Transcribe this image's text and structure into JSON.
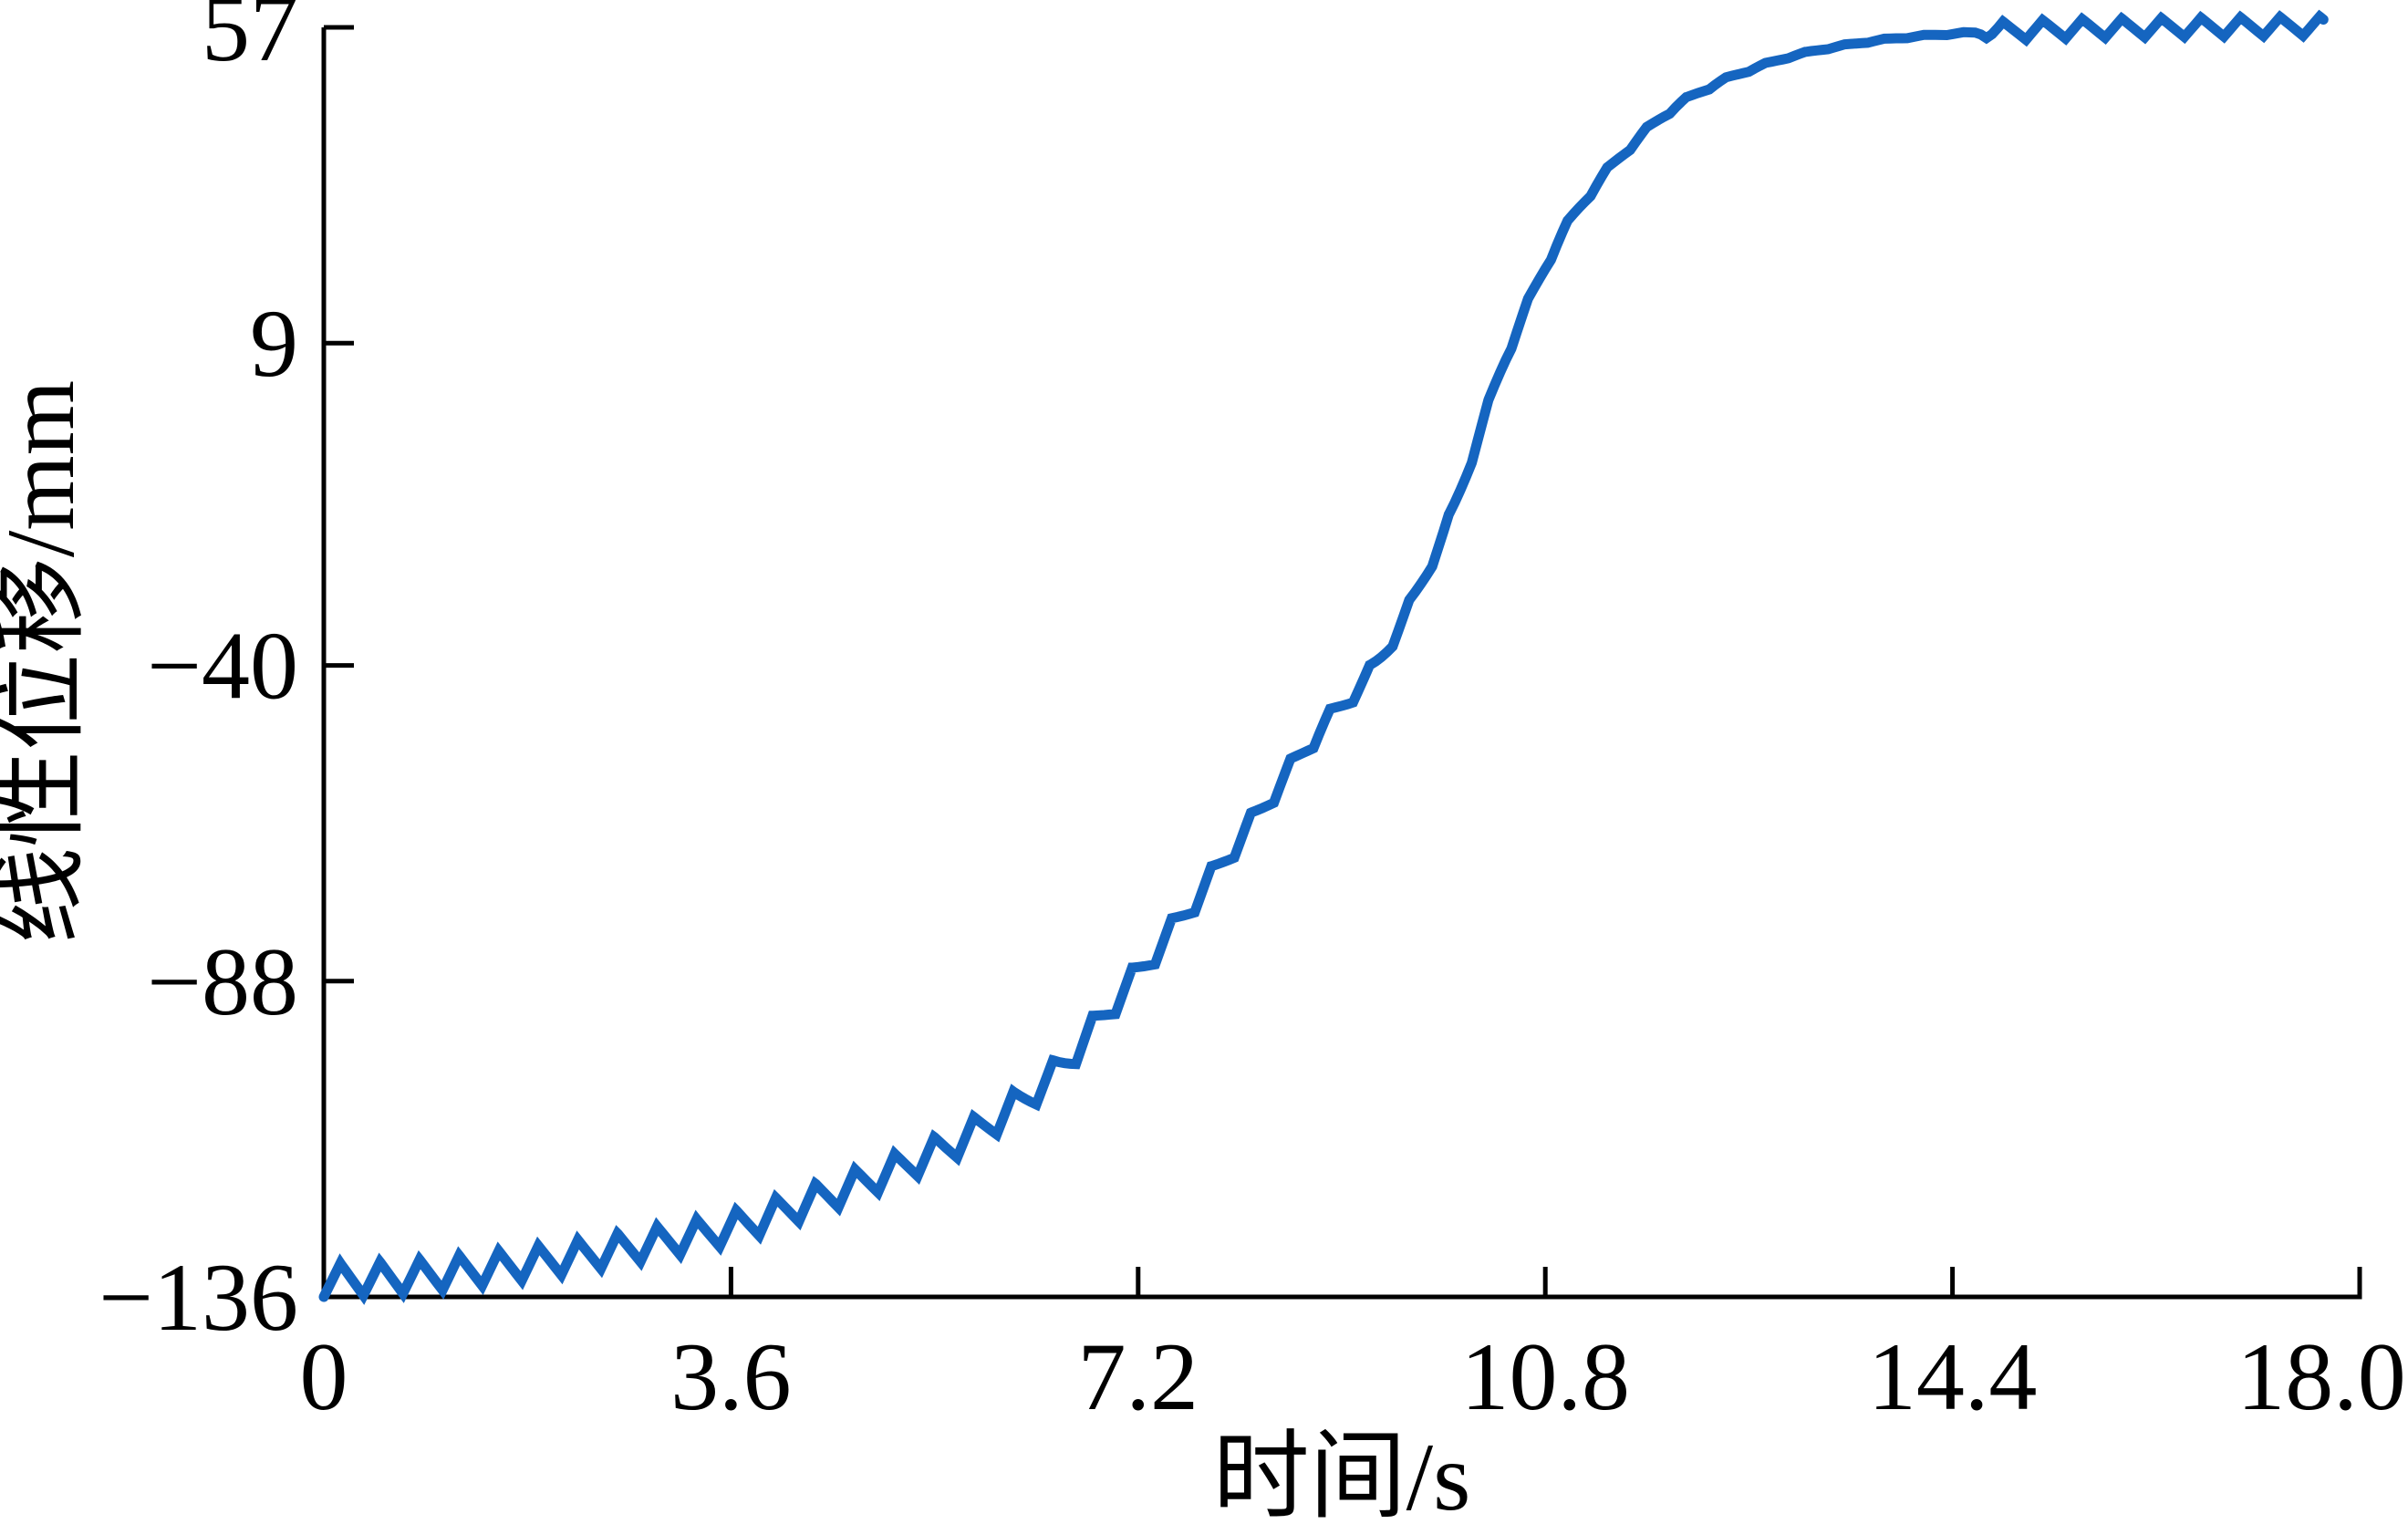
{
  "figure": {
    "background_color": "#ffffff",
    "title": ""
  },
  "axes": {
    "xlabel": "时间/s",
    "ylabel": "线性位移/mm",
    "axis_color": "#000000",
    "x_ticks": {
      "values": [
        0,
        3.6,
        7.2,
        10.8,
        14.4,
        18.0
      ],
      "labels": [
        "0",
        "3.6",
        "7.2",
        "10.8",
        "14.4",
        "18.0"
      ]
    },
    "y_ticks": {
      "values": [
        57,
        9,
        -40,
        -88,
        -136
      ],
      "labels": [
        "57",
        "9",
        "−40",
        "−88",
        "−136"
      ]
    }
  },
  "chart_data": {
    "type": "line",
    "title": "",
    "xlabel": "时间/s",
    "ylabel": "线性位移/mm",
    "xlim": [
      0,
      18
    ],
    "ylim": [
      -136,
      57
    ],
    "grid": false,
    "legend": null,
    "series": [
      {
        "name": "线性位移",
        "color": "#1565c0",
        "description": "S-shaped displacement response from -136 mm to 57 mm with a small sawtooth ripple superimposed; ripple visible at start, becomes staircase steps during the rise, nearly smooth near 13-14.5 s, then a steady zigzag on the 57 mm plateau.",
        "t_start": 0,
        "t_end": 17.68,
        "midline_points": [
          [
            0.0,
            -133.5
          ],
          [
            0.7,
            -133.0
          ],
          [
            1.4,
            -131.8
          ],
          [
            2.1,
            -130.2
          ],
          [
            2.8,
            -128.2
          ],
          [
            3.6,
            -125.5
          ],
          [
            4.3,
            -121.5
          ],
          [
            5.0,
            -117.0
          ],
          [
            5.7,
            -111.5
          ],
          [
            6.4,
            -103.0
          ],
          [
            7.0,
            -91.0
          ],
          [
            7.6,
            -78.0
          ],
          [
            8.2,
            -64.0
          ],
          [
            8.8,
            -50.0
          ],
          [
            9.3,
            -40.0
          ],
          [
            9.9,
            -20.0
          ],
          [
            10.5,
            9.0
          ],
          [
            11.0,
            27.0
          ],
          [
            11.5,
            38.0
          ],
          [
            12.0,
            45.5
          ],
          [
            12.6,
            50.5
          ],
          [
            13.2,
            53.5
          ],
          [
            14.0,
            55.5
          ],
          [
            14.7,
            56.3
          ],
          [
            15.5,
            56.8
          ],
          [
            16.5,
            57.0
          ],
          [
            17.68,
            57.2
          ]
        ],
        "ripple": {
          "period_s": 0.35,
          "rise_fraction": 0.42,
          "amplitude_profile": [
            [
              0.0,
              2.5
            ],
            [
              6.0,
              2.4
            ],
            [
              7.0,
              2.0
            ],
            [
              8.5,
              1.6
            ],
            [
              10.0,
              1.0
            ],
            [
              11.5,
              0.55
            ],
            [
              12.4,
              0.3
            ],
            [
              13.0,
              0.15
            ],
            [
              14.55,
              0.15
            ],
            [
              14.8,
              1.45
            ],
            [
              17.68,
              1.45
            ]
          ]
        }
      }
    ]
  }
}
